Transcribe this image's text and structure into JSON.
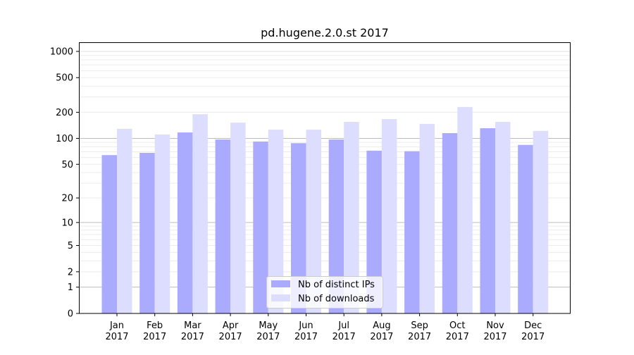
{
  "chart_data": {
    "type": "bar",
    "title": "pd.hugene.2.0.st 2017",
    "xlabel": "",
    "ylabel": "",
    "yscale": "log(1+y)",
    "ylim": [
      0,
      1200
    ],
    "yticks": [
      0,
      1,
      2,
      5,
      10,
      20,
      50,
      100,
      200,
      500,
      1000
    ],
    "grid": true,
    "legend_position": "bottom-center",
    "categories": [
      "Jan\n2017",
      "Feb\n2017",
      "Mar\n2017",
      "Apr\n2017",
      "May\n2017",
      "Jun\n2017",
      "Jul\n2017",
      "Aug\n2017",
      "Sep\n2017",
      "Oct\n2017",
      "Nov\n2017",
      "Dec\n2017"
    ],
    "series": [
      {
        "name": "Nb of distinct IPs",
        "color": "#aaaaff",
        "values": [
          64,
          68,
          117,
          97,
          92,
          88,
          97,
          72,
          71,
          115,
          131,
          84
        ]
      },
      {
        "name": "Nb of downloads",
        "color": "#ddddff",
        "values": [
          129,
          111,
          190,
          152,
          126,
          126,
          155,
          167,
          147,
          230,
          155,
          122
        ]
      }
    ]
  }
}
